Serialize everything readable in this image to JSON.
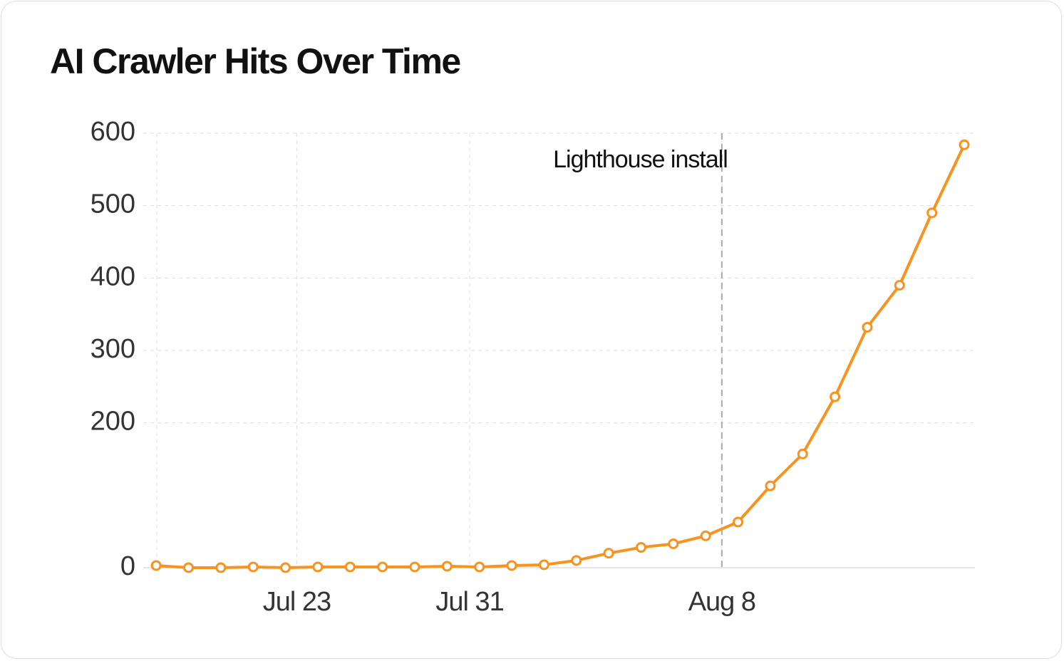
{
  "chart_data": {
    "type": "line",
    "title": "AI Crawler Hits Over Time",
    "x": [
      0,
      1,
      2,
      3,
      4,
      5,
      6,
      7,
      8,
      9,
      10,
      11,
      12,
      13,
      14,
      15,
      16,
      17,
      18,
      19,
      20,
      21,
      22,
      23,
      24,
      25
    ],
    "series": [
      {
        "name": "AI crawler hits",
        "color": "#f7931e",
        "values": [
          3,
          0,
          0,
          1,
          0,
          1,
          1,
          1,
          1,
          2,
          1,
          3,
          4,
          10,
          20,
          28,
          33,
          44,
          63,
          113,
          157,
          236,
          332,
          390,
          490,
          584
        ]
      }
    ],
    "xlim": [
      -0.4,
      25.33
    ],
    "xticks": [
      {
        "value": 4.35,
        "label": "Jul 23"
      },
      {
        "value": 9.7,
        "label": "Jul 31"
      },
      {
        "value": 17.5,
        "label": "Aug 8"
      }
    ],
    "ylim": [
      0,
      600
    ],
    "yticks": [
      0,
      200,
      300,
      400,
      500,
      600
    ],
    "grid": true,
    "annotation": {
      "text": "Lighthouse install",
      "x": 17.5
    }
  }
}
